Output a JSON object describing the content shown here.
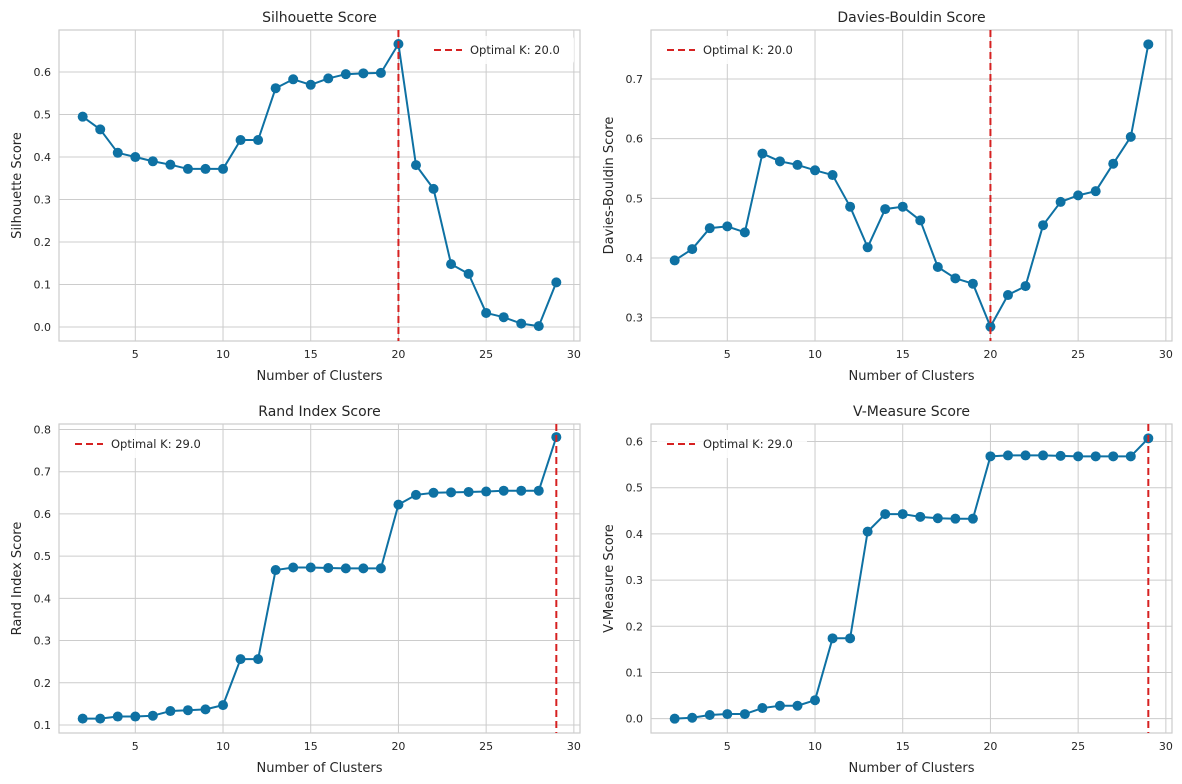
{
  "colors": {
    "line": "#0e71a3",
    "optimal": "#d62121",
    "grid": "#cccccc",
    "frame": "#cccccc",
    "background": "#ffffff"
  },
  "chart_data": [
    {
      "type": "line",
      "title": "Silhouette Score",
      "xlabel": "Number of Clusters",
      "ylabel": "Silhouette Score",
      "xlim": [
        0.65,
        30.35
      ],
      "ylim": [
        -0.033,
        0.699
      ],
      "xticks": [
        5,
        10,
        15,
        20,
        25,
        30
      ],
      "yticks": [
        0.0,
        0.1,
        0.2,
        0.3,
        0.4,
        0.5,
        0.6
      ],
      "x": [
        2,
        3,
        4,
        5,
        6,
        7,
        8,
        9,
        10,
        11,
        12,
        13,
        14,
        15,
        16,
        17,
        18,
        19,
        20,
        21,
        22,
        23,
        24,
        25,
        26,
        27,
        28,
        29
      ],
      "values": [
        0.495,
        0.465,
        0.41,
        0.4,
        0.39,
        0.382,
        0.372,
        0.372,
        0.372,
        0.44,
        0.44,
        0.562,
        0.583,
        0.57,
        0.585,
        0.595,
        0.597,
        0.598,
        0.666,
        0.381,
        0.325,
        0.148,
        0.125,
        0.033,
        0.023,
        0.008,
        0.002,
        0.105
      ],
      "optimal_k": 20,
      "legend_label": "Optimal K: 20.0",
      "legend_position": "top-right",
      "grid": true
    },
    {
      "type": "line",
      "title": "Davies-Bouldin Score",
      "xlabel": "Number of Clusters",
      "ylabel": "Davies-Bouldin Score",
      "xlim": [
        0.65,
        30.35
      ],
      "ylim": [
        0.261,
        0.782
      ],
      "xticks": [
        5,
        10,
        15,
        20,
        25,
        30
      ],
      "yticks": [
        0.3,
        0.4,
        0.5,
        0.6,
        0.7
      ],
      "x": [
        2,
        3,
        4,
        5,
        6,
        7,
        8,
        9,
        10,
        11,
        12,
        13,
        14,
        15,
        16,
        17,
        18,
        19,
        20,
        21,
        22,
        23,
        24,
        25,
        26,
        27,
        28,
        29
      ],
      "values": [
        0.396,
        0.415,
        0.45,
        0.453,
        0.443,
        0.575,
        0.562,
        0.556,
        0.547,
        0.539,
        0.486,
        0.418,
        0.482,
        0.486,
        0.463,
        0.385,
        0.366,
        0.357,
        0.285,
        0.338,
        0.353,
        0.455,
        0.494,
        0.505,
        0.512,
        0.558,
        0.603,
        0.758
      ],
      "optimal_k": 20,
      "legend_label": "Optimal K: 20.0",
      "legend_position": "top-left",
      "grid": true
    },
    {
      "type": "line",
      "title": "Rand Index Score",
      "xlabel": "Number of Clusters",
      "ylabel": "Rand Index Score",
      "xlim": [
        0.65,
        30.35
      ],
      "ylim": [
        0.081,
        0.813
      ],
      "xticks": [
        5,
        10,
        15,
        20,
        25,
        30
      ],
      "yticks": [
        0.1,
        0.2,
        0.3,
        0.4,
        0.5,
        0.6,
        0.7,
        0.8
      ],
      "x": [
        2,
        3,
        4,
        5,
        6,
        7,
        8,
        9,
        10,
        11,
        12,
        13,
        14,
        15,
        16,
        17,
        18,
        19,
        20,
        21,
        22,
        23,
        24,
        25,
        26,
        27,
        28,
        29
      ],
      "values": [
        0.115,
        0.115,
        0.12,
        0.12,
        0.122,
        0.133,
        0.135,
        0.137,
        0.147,
        0.256,
        0.256,
        0.467,
        0.473,
        0.473,
        0.472,
        0.471,
        0.471,
        0.471,
        0.622,
        0.645,
        0.65,
        0.651,
        0.652,
        0.653,
        0.655,
        0.655,
        0.655,
        0.782
      ],
      "optimal_k": 29,
      "legend_label": "Optimal K: 29.0",
      "legend_position": "top-left",
      "grid": true
    },
    {
      "type": "line",
      "title": "V-Measure Score",
      "xlabel": "Number of Clusters",
      "ylabel": "V-Measure Score",
      "xlim": [
        0.65,
        30.35
      ],
      "ylim": [
        -0.031,
        0.638
      ],
      "xticks": [
        5,
        10,
        15,
        20,
        25,
        30
      ],
      "yticks": [
        0.0,
        0.1,
        0.2,
        0.3,
        0.4,
        0.5,
        0.6
      ],
      "x": [
        2,
        3,
        4,
        5,
        6,
        7,
        8,
        9,
        10,
        11,
        12,
        13,
        14,
        15,
        16,
        17,
        18,
        19,
        20,
        21,
        22,
        23,
        24,
        25,
        26,
        27,
        28,
        29
      ],
      "values": [
        0.0,
        0.002,
        0.008,
        0.01,
        0.01,
        0.023,
        0.028,
        0.028,
        0.04,
        0.174,
        0.174,
        0.405,
        0.443,
        0.443,
        0.437,
        0.434,
        0.433,
        0.433,
        0.568,
        0.57,
        0.57,
        0.57,
        0.569,
        0.568,
        0.568,
        0.568,
        0.568,
        0.607
      ],
      "optimal_k": 29,
      "legend_label": "Optimal K: 29.0",
      "legend_position": "top-left",
      "grid": true
    }
  ]
}
